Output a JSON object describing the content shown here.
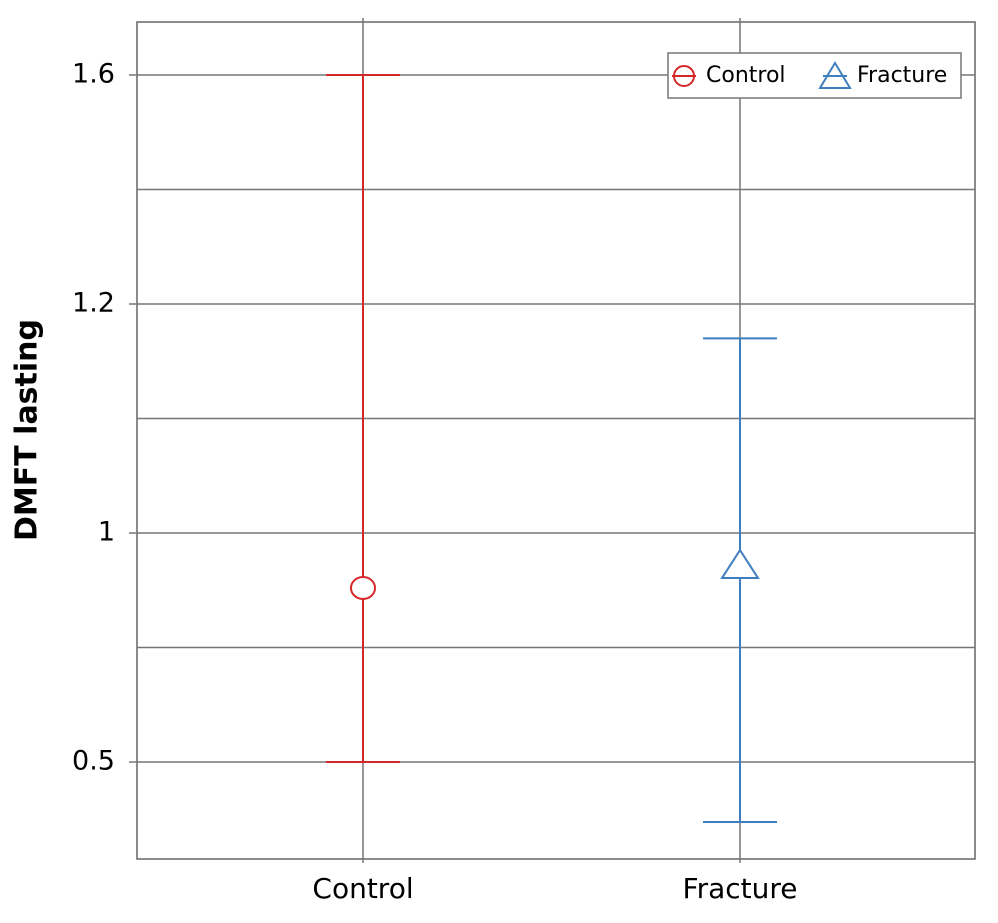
{
  "chart_data": {
    "type": "errorbar",
    "y_label": "DMFT lasting",
    "categories": [
      "Control",
      "Fracture"
    ],
    "series": [
      {
        "name": "Control",
        "color": "#d62728",
        "marker": "circle",
        "values": [
          0.88,
          null
        ],
        "lower": [
          0.5,
          null
        ],
        "upper": [
          1.6,
          null
        ]
      },
      {
        "name": "Fracture",
        "color": "#3f7fbf",
        "marker": "triangle",
        "values": [
          null,
          0.93
        ],
        "lower": [
          null,
          0.37
        ],
        "upper": [
          null,
          1.17
        ]
      }
    ],
    "ylim": [
      0.29,
      1.69
    ],
    "yticks": [
      0.5,
      1.0,
      1.2,
      1.6
    ],
    "minor_yticks": [
      0.75,
      1.1,
      1.4
    ],
    "grid": true,
    "legend": "upper right"
  }
}
